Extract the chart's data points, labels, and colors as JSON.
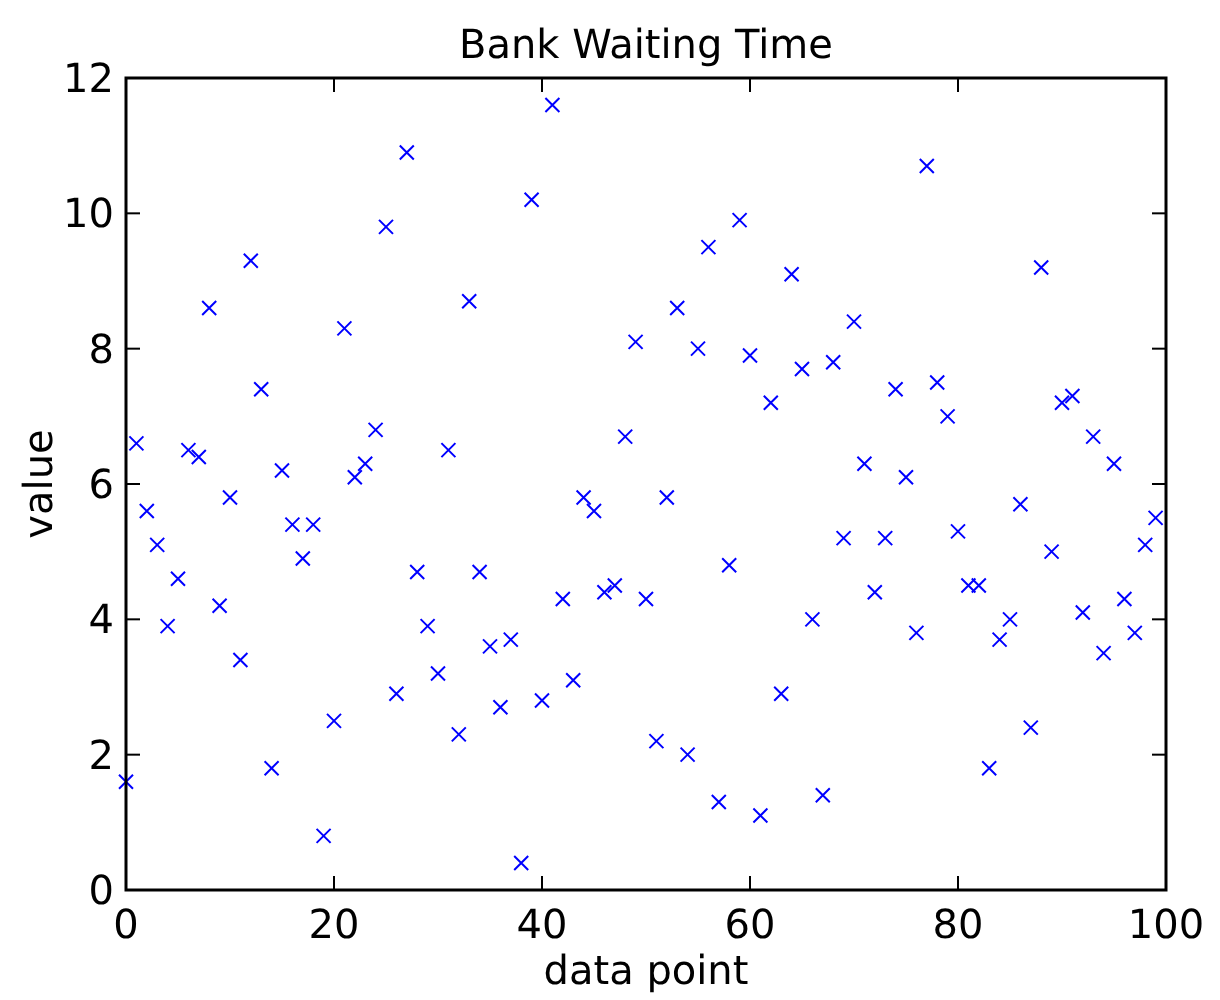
{
  "chart_data": {
    "type": "scatter",
    "title": "Bank Waiting Time",
    "xlabel": "data point",
    "ylabel": "value",
    "x": [
      0,
      1,
      2,
      3,
      4,
      5,
      6,
      7,
      8,
      9,
      10,
      11,
      12,
      13,
      14,
      15,
      16,
      17,
      18,
      19,
      20,
      21,
      22,
      23,
      24,
      25,
      26,
      27,
      28,
      29,
      30,
      31,
      32,
      33,
      34,
      35,
      36,
      37,
      38,
      39,
      40,
      41,
      42,
      43,
      44,
      45,
      46,
      47,
      48,
      49,
      50,
      51,
      52,
      53,
      54,
      55,
      56,
      57,
      58,
      59,
      60,
      61,
      62,
      63,
      64,
      65,
      66,
      67,
      68,
      69,
      70,
      71,
      72,
      73,
      74,
      75,
      76,
      77,
      78,
      79,
      80,
      81,
      82,
      83,
      84,
      85,
      86,
      87,
      88,
      89,
      90,
      91,
      92,
      93,
      94,
      95,
      96,
      97,
      98,
      99
    ],
    "series": [
      {
        "color": "#0000ff",
        "values": [
          1.6,
          6.6,
          5.6,
          5.1,
          3.9,
          4.6,
          6.5,
          6.4,
          8.6,
          4.2,
          5.8,
          3.4,
          9.3,
          7.4,
          1.8,
          6.2,
          5.4,
          4.9,
          5.4,
          0.8,
          2.5,
          8.3,
          6.1,
          6.3,
          6.8,
          9.8,
          2.9,
          10.9,
          4.7,
          3.9,
          3.2,
          6.5,
          2.3,
          8.7,
          4.7,
          3.6,
          2.7,
          3.7,
          0.4,
          10.2,
          2.8,
          11.6,
          4.3,
          3.1,
          5.8,
          5.6,
          4.4,
          4.5,
          6.7,
          8.1,
          4.3,
          2.2,
          5.8,
          8.6,
          2.0,
          8.0,
          9.5,
          1.3,
          4.8,
          9.9,
          7.9,
          1.1,
          7.2,
          2.9,
          9.1,
          7.7,
          4.0,
          1.4,
          7.8,
          5.2,
          8.4,
          6.3,
          4.4,
          5.2,
          7.4,
          6.1,
          3.8,
          10.7,
          7.5,
          7.0,
          5.3,
          4.5,
          4.5,
          1.8,
          3.7,
          4.0,
          5.7,
          2.4,
          9.2,
          5.0,
          7.2,
          7.3,
          4.1,
          6.7,
          3.5,
          6.3,
          4.3,
          3.8,
          5.1,
          5.5
        ]
      }
    ],
    "xlim": [
      0,
      100
    ],
    "xticks": [
      0,
      20,
      40,
      60,
      80,
      100
    ],
    "ylim": [
      0,
      12
    ],
    "yticks": [
      0,
      2,
      4,
      6,
      8,
      10,
      12
    ],
    "marker": "cross",
    "grid": false
  }
}
